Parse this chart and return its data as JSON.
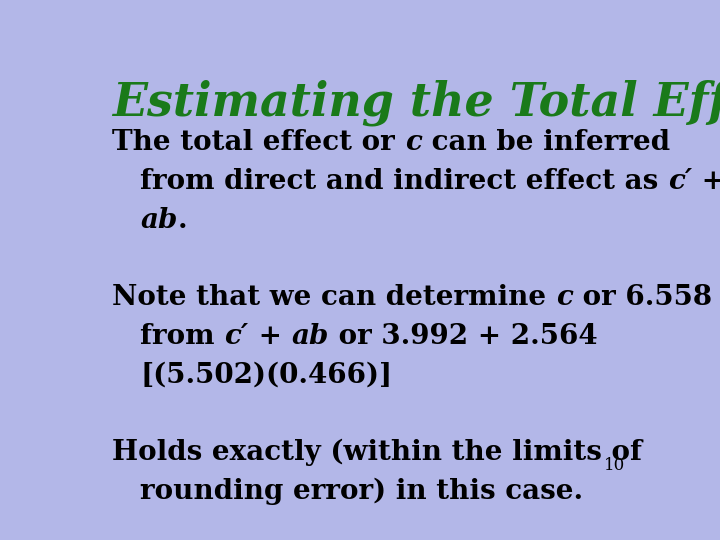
{
  "background_color": "#b3b7e8",
  "title": "Estimating the Total Effect (c)",
  "title_color": "#1a7a1a",
  "title_fontsize": 33,
  "body_fontsize": 20,
  "body_color": "#000000",
  "page_number": "10",
  "page_num_fontsize": 12,
  "lines": [
    [
      {
        "text": "The total effect or ",
        "italic": false,
        "indent": false
      },
      {
        "text": "c",
        "italic": true,
        "indent": false
      },
      {
        "text": " can be inferred",
        "italic": false,
        "indent": false
      }
    ],
    [
      {
        "text": "from direct and indirect effect as ",
        "italic": false,
        "indent": true
      },
      {
        "text": "c′",
        "italic": true,
        "indent": false
      },
      {
        "text": " +",
        "italic": false,
        "indent": false
      }
    ],
    [
      {
        "text": "ab",
        "italic": true,
        "indent": true
      },
      {
        "text": ".",
        "italic": false,
        "indent": false
      }
    ],
    [
      {
        "text": "",
        "italic": false,
        "indent": false
      }
    ],
    [
      {
        "text": "Note that we can determine ",
        "italic": false,
        "indent": false
      },
      {
        "text": "c",
        "italic": true,
        "indent": false
      },
      {
        "text": " or 6.558",
        "italic": false,
        "indent": false
      }
    ],
    [
      {
        "text": "from ",
        "italic": false,
        "indent": true
      },
      {
        "text": "c′",
        "italic": true,
        "indent": false
      },
      {
        "text": " + ",
        "italic": false,
        "indent": false
      },
      {
        "text": "ab",
        "italic": true,
        "indent": false
      },
      {
        "text": " or 3.992 + 2.564",
        "italic": false,
        "indent": false
      }
    ],
    [
      {
        "text": "[(5.502)(0.466)]",
        "italic": false,
        "indent": true
      }
    ],
    [
      {
        "text": "",
        "italic": false,
        "indent": false
      }
    ],
    [
      {
        "text": "Holds exactly (within the limits of",
        "italic": false,
        "indent": false
      }
    ],
    [
      {
        "text": "rounding error) in this case.",
        "italic": false,
        "indent": true
      }
    ]
  ]
}
